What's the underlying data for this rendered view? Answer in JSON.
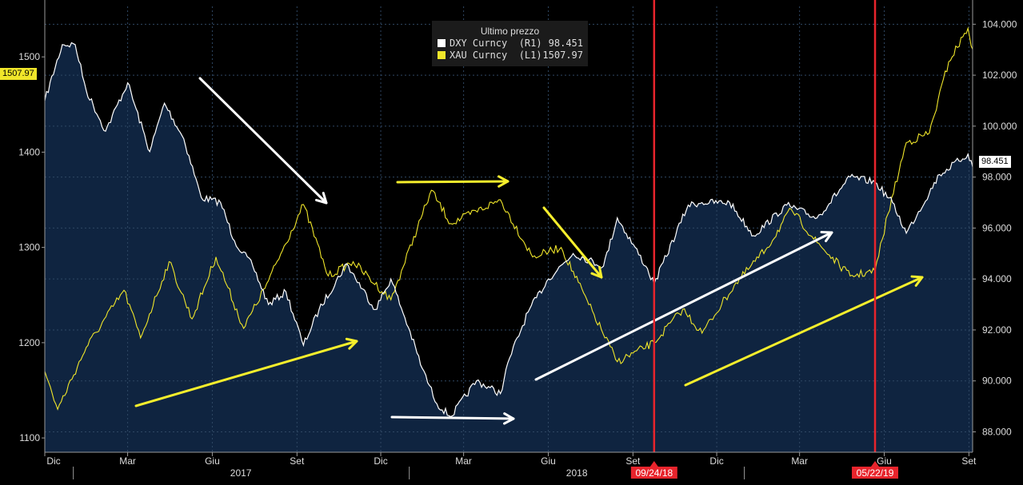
{
  "legend": {
    "title": "Ultimo prezzo",
    "items": [
      {
        "label": "DXY Curncy  (R1)",
        "value": "98.451",
        "color": "#ffffff"
      },
      {
        "label": "XAU Curncy  (L1)",
        "value": "1507.97",
        "color": "#f0e62a"
      }
    ]
  },
  "colors": {
    "background": "#000000",
    "area_fill": "#0f2440",
    "dxy": "#ffffff",
    "xau": "#f0e62a",
    "marker": "#e8242c",
    "arrow_white": "#ffffff",
    "arrow_yellow": "#f5ee2c",
    "grid": "#2f4763"
  },
  "last_values": {
    "left": "1507.97",
    "right": "98.451"
  },
  "markers": [
    {
      "date": "09/24/18"
    },
    {
      "date": "05/22/19"
    }
  ],
  "chart_data": {
    "type": "line",
    "x_range": [
      "2016-12-01",
      "2019-09-05"
    ],
    "left_axis": {
      "series": "XAU Curncy (L1)",
      "ylim": [
        1085,
        1553
      ],
      "ticks": [
        1100,
        1200,
        1300,
        1400,
        1500
      ]
    },
    "right_axis": {
      "series": "DXY Curncy (R1)",
      "ylim": [
        87.2,
        104.7
      ],
      "ticks": [
        "88.000",
        "90.000",
        "92.000",
        "94.000",
        "96.000",
        "98.000",
        "100.000",
        "102.000",
        "104.000"
      ]
    },
    "x_month_labels": [
      "Dic",
      "Mar",
      "Giu",
      "Set",
      "Dic",
      "Mar",
      "Giu",
      "Set",
      "Dic",
      "Mar",
      "Giu",
      "Set"
    ],
    "x_year_labels": [
      "2017",
      "2018"
    ],
    "series": [
      {
        "name": "DXY Curncy (R1)",
        "axis": "right",
        "points": [
          [
            "2016-12-01",
            101.0
          ],
          [
            "2016-12-20",
            103.2
          ],
          [
            "2017-01-03",
            103.2
          ],
          [
            "2017-01-15",
            101.4
          ],
          [
            "2017-02-05",
            99.8
          ],
          [
            "2017-03-01",
            101.7
          ],
          [
            "2017-03-25",
            99.0
          ],
          [
            "2017-04-10",
            100.9
          ],
          [
            "2017-05-01",
            99.5
          ],
          [
            "2017-05-20",
            97.2
          ],
          [
            "2017-06-10",
            97.0
          ],
          [
            "2017-06-25",
            95.5
          ],
          [
            "2017-07-15",
            94.5
          ],
          [
            "2017-08-01",
            93.0
          ],
          [
            "2017-08-20",
            93.5
          ],
          [
            "2017-09-08",
            91.4
          ],
          [
            "2017-09-25",
            92.8
          ],
          [
            "2017-10-25",
            94.6
          ],
          [
            "2017-11-25",
            92.8
          ],
          [
            "2017-12-12",
            94.0
          ],
          [
            "2017-12-31",
            92.1
          ],
          [
            "2018-01-15",
            90.5
          ],
          [
            "2018-01-31",
            89.1
          ],
          [
            "2018-02-15",
            88.6
          ],
          [
            "2018-03-15",
            90.0
          ],
          [
            "2018-04-10",
            89.5
          ],
          [
            "2018-04-20",
            90.9
          ],
          [
            "2018-05-10",
            92.7
          ],
          [
            "2018-06-01",
            94.0
          ],
          [
            "2018-06-28",
            95.0
          ],
          [
            "2018-07-31",
            94.5
          ],
          [
            "2018-08-15",
            96.4
          ],
          [
            "2018-09-15",
            94.5
          ],
          [
            "2018-09-24",
            93.8
          ],
          [
            "2018-10-31",
            96.9
          ],
          [
            "2018-11-15",
            97.0
          ],
          [
            "2018-12-15",
            97.0
          ],
          [
            "2019-01-10",
            95.7
          ],
          [
            "2019-02-15",
            96.9
          ],
          [
            "2019-03-20",
            96.4
          ],
          [
            "2019-04-25",
            98.0
          ],
          [
            "2019-05-22",
            97.8
          ],
          [
            "2019-06-10",
            97.0
          ],
          [
            "2019-06-25",
            95.8
          ],
          [
            "2019-07-31",
            98.1
          ],
          [
            "2019-08-31",
            98.9
          ],
          [
            "2019-09-05",
            98.4
          ]
        ]
      },
      {
        "name": "XAU Curncy (L1)",
        "axis": "left",
        "points": [
          [
            "2016-12-01",
            1170
          ],
          [
            "2016-12-15",
            1130
          ],
          [
            "2017-01-15",
            1195
          ],
          [
            "2017-02-25",
            1255
          ],
          [
            "2017-03-15",
            1205
          ],
          [
            "2017-04-15",
            1285
          ],
          [
            "2017-05-10",
            1225
          ],
          [
            "2017-06-05",
            1290
          ],
          [
            "2017-07-05",
            1215
          ],
          [
            "2017-08-01",
            1265
          ],
          [
            "2017-09-08",
            1345
          ],
          [
            "2017-10-05",
            1270
          ],
          [
            "2017-11-01",
            1285
          ],
          [
            "2017-12-12",
            1245
          ],
          [
            "2018-01-25",
            1360
          ],
          [
            "2018-02-15",
            1325
          ],
          [
            "2018-04-10",
            1350
          ],
          [
            "2018-05-15",
            1290
          ],
          [
            "2018-06-15",
            1300
          ],
          [
            "2018-07-15",
            1240
          ],
          [
            "2018-08-15",
            1180
          ],
          [
            "2018-09-24",
            1200
          ],
          [
            "2018-10-25",
            1235
          ],
          [
            "2018-11-15",
            1210
          ],
          [
            "2018-12-20",
            1260
          ],
          [
            "2019-01-25",
            1300
          ],
          [
            "2019-02-20",
            1340
          ],
          [
            "2019-03-20",
            1305
          ],
          [
            "2019-04-25",
            1270
          ],
          [
            "2019-05-22",
            1275
          ],
          [
            "2019-06-05",
            1335
          ],
          [
            "2019-06-25",
            1410
          ],
          [
            "2019-07-20",
            1420
          ],
          [
            "2019-08-10",
            1495
          ],
          [
            "2019-08-31",
            1530
          ],
          [
            "2019-09-05",
            1507.97
          ]
        ]
      }
    ],
    "markers": [
      "2018-09-24",
      "2019-05-22"
    ],
    "grid": true,
    "legend_position": "top-center"
  }
}
